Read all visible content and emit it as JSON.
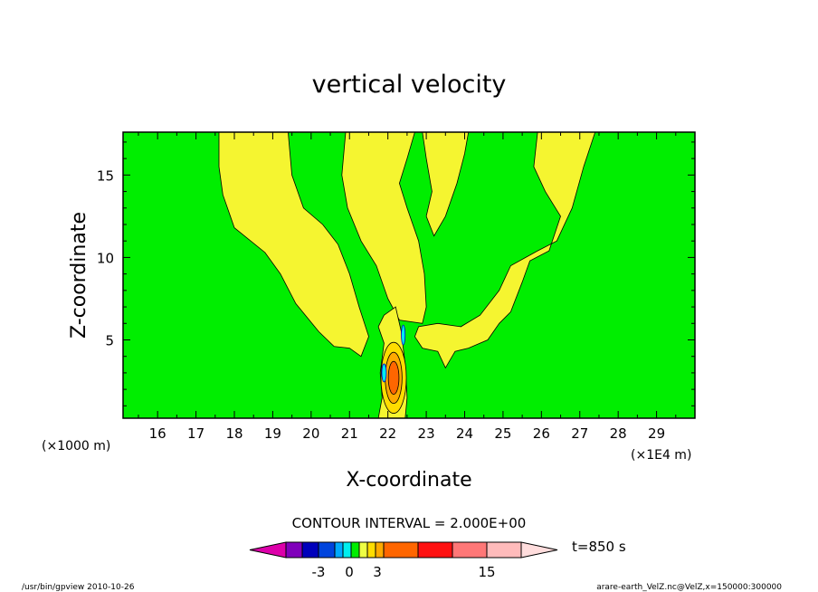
{
  "chart_data": {
    "type": "contour",
    "title": "vertical velocity",
    "xlabel": "X-coordinate",
    "ylabel": "Z-coordinate",
    "x_unit_label": "(×1E4 m)",
    "y_unit_label": "(×1000 m)",
    "xlim": [
      15.1,
      30.0
    ],
    "ylim": [
      0.25,
      17.6
    ],
    "x_ticks": [
      "16",
      "17",
      "18",
      "19",
      "20",
      "21",
      "22",
      "23",
      "24",
      "25",
      "26",
      "27",
      "28",
      "29"
    ],
    "y_ticks": [
      "5",
      "10",
      "15"
    ],
    "grid": false,
    "background_color": "#00ee00",
    "contour_interval_text": "CONTOUR INTERVAL = 2.000E+00",
    "time_label": "t=850 s",
    "colorbar": {
      "colors": [
        "#dd00aa",
        "#8000bb",
        "#0000bb",
        "#0044dd",
        "#00aaff",
        "#00eeee",
        "#00ee00",
        "#eeff44",
        "#ffdd00",
        "#ffaa00",
        "#ff6600",
        "#ff1111",
        "#ff7777",
        "#ffbbbb",
        "#ffdddd"
      ],
      "tick_labels": [
        "-3",
        "0",
        "3",
        "15"
      ]
    },
    "positive_regions": [
      {
        "level": "0-1",
        "color": "#f5f530",
        "points": [
          [
            17.6,
            17.6
          ],
          [
            19.4,
            17.6
          ],
          [
            19.5,
            15.0
          ],
          [
            19.8,
            13.0
          ],
          [
            20.3,
            12.0
          ],
          [
            20.7,
            10.8
          ],
          [
            21.0,
            9.0
          ],
          [
            21.25,
            7.0
          ],
          [
            21.5,
            5.2
          ],
          [
            21.3,
            4.0
          ],
          [
            21.0,
            4.5
          ],
          [
            20.6,
            4.6
          ],
          [
            20.2,
            5.5
          ],
          [
            19.6,
            7.2
          ],
          [
            19.2,
            9.0
          ],
          [
            18.8,
            10.3
          ],
          [
            18.0,
            11.8
          ],
          [
            17.7,
            13.8
          ],
          [
            17.6,
            15.5
          ]
        ]
      },
      {
        "level": "0-1",
        "color": "#f5f530",
        "points": [
          [
            20.9,
            17.6
          ],
          [
            22.7,
            17.6
          ],
          [
            22.5,
            16.0
          ],
          [
            22.3,
            14.5
          ],
          [
            22.5,
            13.0
          ],
          [
            22.8,
            11.0
          ],
          [
            22.95,
            9.0
          ],
          [
            23.0,
            7.0
          ],
          [
            22.9,
            6.0
          ],
          [
            22.3,
            6.2
          ],
          [
            22.0,
            7.5
          ],
          [
            21.7,
            9.5
          ],
          [
            21.3,
            11.0
          ],
          [
            20.95,
            13.0
          ],
          [
            20.8,
            15.0
          ]
        ]
      },
      {
        "level": "0-1",
        "color": "#f5f530",
        "points": [
          [
            22.9,
            17.6
          ],
          [
            24.1,
            17.6
          ],
          [
            24.0,
            16.3
          ],
          [
            23.8,
            14.5
          ],
          [
            23.5,
            12.5
          ],
          [
            23.2,
            11.3
          ],
          [
            23.0,
            12.5
          ],
          [
            23.15,
            14.0
          ],
          [
            23.0,
            16.0
          ]
        ]
      },
      {
        "level": "0-1",
        "color": "#f5f530",
        "points": [
          [
            25.9,
            17.6
          ],
          [
            27.4,
            17.6
          ],
          [
            27.1,
            15.5
          ],
          [
            26.8,
            13.0
          ],
          [
            26.4,
            11.0
          ],
          [
            25.9,
            10.4
          ],
          [
            25.2,
            9.5
          ],
          [
            24.9,
            8.0
          ],
          [
            24.4,
            6.5
          ],
          [
            23.9,
            5.8
          ],
          [
            23.3,
            6.0
          ],
          [
            22.8,
            5.8
          ],
          [
            22.7,
            5.2
          ],
          [
            22.9,
            4.5
          ],
          [
            23.3,
            4.3
          ],
          [
            23.5,
            3.3
          ],
          [
            23.75,
            4.3
          ],
          [
            24.1,
            4.5
          ],
          [
            24.6,
            5.0
          ],
          [
            24.9,
            6.0
          ],
          [
            25.2,
            6.7
          ],
          [
            25.5,
            8.5
          ],
          [
            25.7,
            9.8
          ],
          [
            26.2,
            10.4
          ],
          [
            26.5,
            12.5
          ],
          [
            26.1,
            14.0
          ],
          [
            25.8,
            15.5
          ]
        ]
      },
      {
        "level": "0-1",
        "color": "#f5f530",
        "points": [
          [
            21.9,
            6.5
          ],
          [
            22.2,
            7.0
          ],
          [
            22.35,
            5.5
          ],
          [
            22.45,
            3.5
          ],
          [
            22.5,
            1.5
          ],
          [
            22.45,
            0.25
          ],
          [
            21.75,
            0.25
          ],
          [
            21.85,
            1.5
          ],
          [
            21.8,
            3.0
          ],
          [
            21.9,
            4.8
          ],
          [
            21.75,
            5.8
          ]
        ]
      }
    ],
    "updraft_core": {
      "center": [
        22.15,
        2.7
      ],
      "levels": [
        {
          "color": "#ffdd00",
          "rx": 0.33,
          "ry": 2.15
        },
        {
          "color": "#ffaa00",
          "rx": 0.22,
          "ry": 1.55
        },
        {
          "color": "#ff6600",
          "rx": 0.14,
          "ry": 1.0
        }
      ]
    },
    "negative_regions": [
      {
        "level": "-1-0",
        "color": "#00eeee",
        "center": [
          21.9,
          3.0
        ],
        "rx": 0.06,
        "ry": 0.55
      },
      {
        "level": "-1-0",
        "color": "#00eeee",
        "center": [
          22.4,
          5.3
        ],
        "rx": 0.05,
        "ry": 0.6
      }
    ]
  },
  "footer": {
    "left": "/usr/bin/gpview   2010-10-26",
    "right": "arare-earth_VelZ.nc@VelZ,x=150000:300000"
  }
}
